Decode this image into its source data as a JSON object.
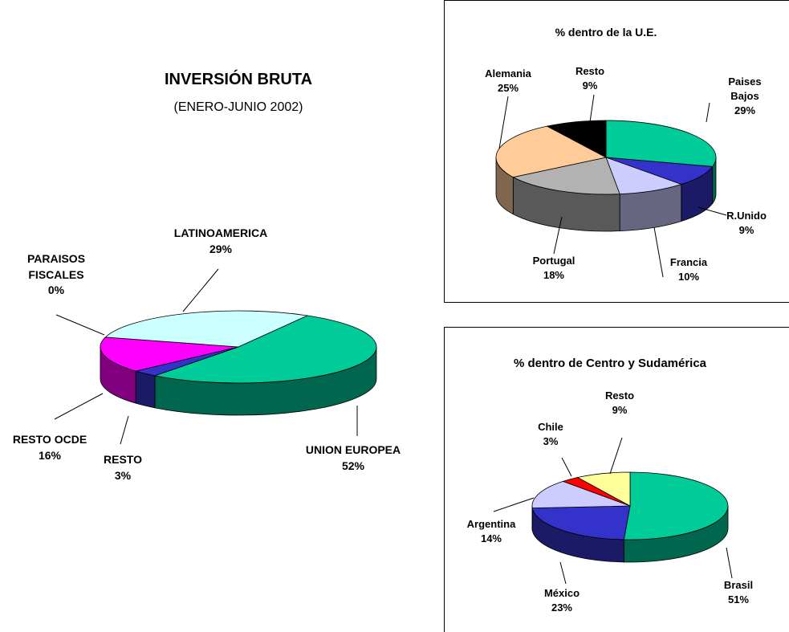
{
  "chart_data": [
    {
      "type": "pie",
      "title": "INVERSIÓN BRUTA",
      "subtitle": "(ENERO-JUNIO 2002)",
      "categories": [
        "UNION EUROPEA",
        "RESTO",
        "RESTO OCDE",
        "PARAISOS FISCALES",
        "LATINOAMERICA"
      ],
      "values": [
        52,
        3,
        16,
        0,
        29
      ],
      "value_labels": [
        "52%",
        "3%",
        "16%",
        "0%",
        "29%"
      ],
      "colors": [
        "#00cc99",
        "#3333cc",
        "#ff00ff",
        "#ffffff",
        "#ccffff"
      ]
    },
    {
      "type": "pie",
      "title": "% dentro de la U.E.",
      "categories": [
        "Paises Bajos",
        "R.Unido",
        "Francia",
        "Portugal",
        "Alemania",
        "Resto"
      ],
      "values": [
        29,
        9,
        10,
        18,
        25,
        9
      ],
      "value_labels": [
        "29%",
        "9%",
        "10%",
        "18%",
        "25%",
        "9%"
      ],
      "colors": [
        "#00cc99",
        "#3333cc",
        "#ccccff",
        "#b2b2b2",
        "#ffcc99",
        "#000000"
      ]
    },
    {
      "type": "pie",
      "title": "% dentro de Centro y Sudamérica",
      "categories": [
        "Brasil",
        "México",
        "Argentina",
        "Chile",
        "Resto"
      ],
      "values": [
        51,
        23,
        14,
        3,
        9
      ],
      "value_labels": [
        "51%",
        "23%",
        "14%",
        "3%",
        "9%"
      ],
      "colors": [
        "#00cc99",
        "#3333cc",
        "#ccccff",
        "#ff0000",
        "#ffff99"
      ]
    }
  ]
}
